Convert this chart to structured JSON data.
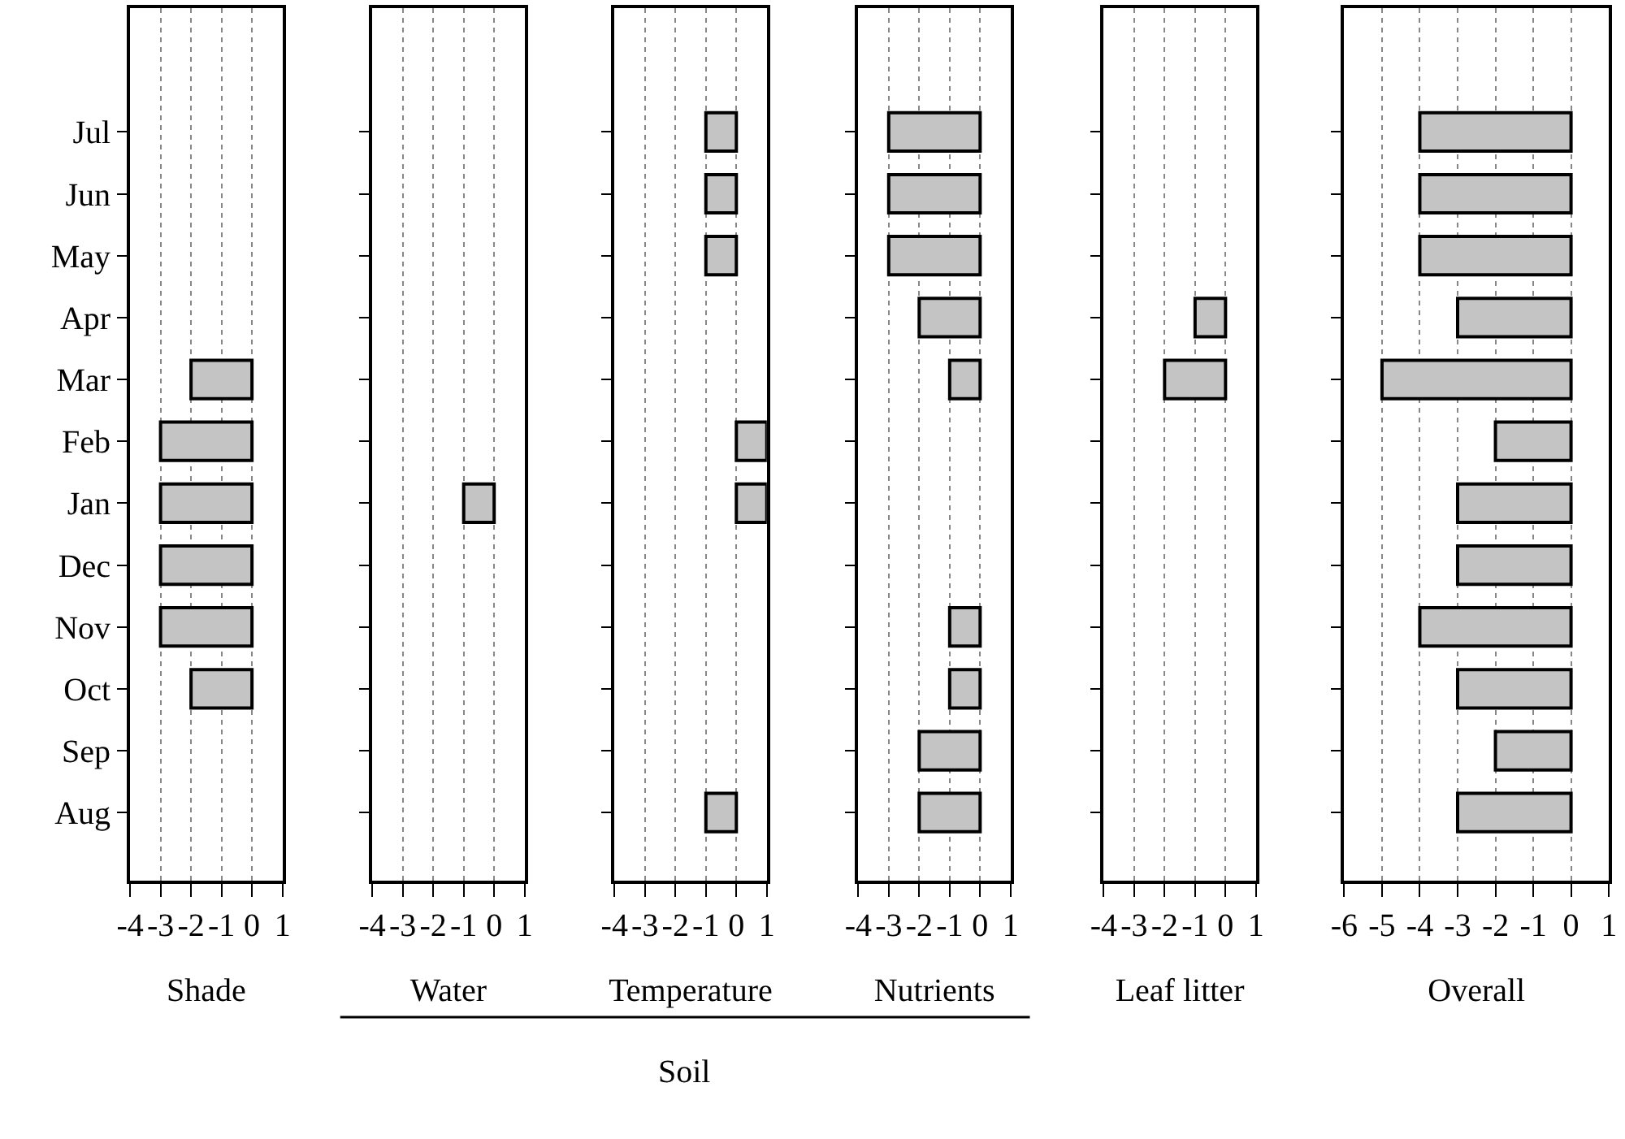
{
  "chart_data": [
    {
      "type": "bar",
      "orientation": "horizontal",
      "xlabel": "Shade",
      "categories": [
        "Jul",
        "Jun",
        "May",
        "Apr",
        "Mar",
        "Feb",
        "Jan",
        "Dec",
        "Nov",
        "Oct",
        "Sep",
        "Aug"
      ],
      "values": [
        null,
        null,
        null,
        null,
        -2,
        -3,
        -3,
        -3,
        -3,
        -2,
        null,
        null
      ],
      "color": "#c4c4c4",
      "xlim": [
        -4,
        1
      ],
      "xticks": [
        -4,
        -3,
        -2,
        -1,
        0,
        1
      ],
      "grid": "x"
    },
    {
      "type": "bar",
      "orientation": "horizontal",
      "xlabel": "Water",
      "categories": [
        "Jul",
        "Jun",
        "May",
        "Apr",
        "Mar",
        "Feb",
        "Jan",
        "Dec",
        "Nov",
        "Oct",
        "Sep",
        "Aug"
      ],
      "values": [
        null,
        null,
        null,
        null,
        null,
        null,
        -1,
        null,
        null,
        null,
        null,
        null
      ],
      "color": "#c4c4c4",
      "xlim": [
        -4,
        1
      ],
      "xticks": [
        -4,
        -3,
        -2,
        -1,
        0,
        1
      ],
      "grid": "x",
      "tick_labels": "x"
    },
    {
      "type": "bar",
      "orientation": "horizontal",
      "xlabel": "Temperature",
      "categories": [
        "Jul",
        "Jun",
        "May",
        "Apr",
        "Mar",
        "Feb",
        "Jan",
        "Dec",
        "Nov",
        "Oct",
        "Sep",
        "Aug"
      ],
      "values": [
        -1,
        -1,
        -1,
        null,
        null,
        1,
        1,
        null,
        null,
        null,
        null,
        -1
      ],
      "color": "#c4c4c4",
      "xlim": [
        -4,
        1
      ],
      "xticks": [
        -4,
        -3,
        -2,
        -1,
        0,
        1
      ],
      "grid": "x",
      "tick_labels": "x",
      "annotations": [
        "Soil"
      ]
    },
    {
      "type": "bar",
      "orientation": "horizontal",
      "xlabel": "Nutrients",
      "categories": [
        "Jul",
        "Jun",
        "May",
        "Apr",
        "Mar",
        "Feb",
        "Jan",
        "Dec",
        "Nov",
        "Oct",
        "Sep",
        "Aug"
      ],
      "values": [
        -3,
        -3,
        -3,
        -2,
        -1,
        null,
        null,
        null,
        -1,
        -1,
        -2,
        -2
      ],
      "color": "#c4c4c4",
      "xlim": [
        -4,
        1
      ],
      "xticks": [
        -4,
        -3,
        -2,
        -1,
        0,
        1
      ],
      "grid": "x",
      "tick_labels": "x"
    },
    {
      "type": "bar",
      "orientation": "horizontal",
      "xlabel": "Leaf litter",
      "categories": [
        "Jul",
        "Jun",
        "May",
        "Apr",
        "Mar",
        "Feb",
        "Jan",
        "Dec",
        "Nov",
        "Oct",
        "Sep",
        "Aug"
      ],
      "values": [
        null,
        null,
        null,
        -1,
        -2,
        null,
        null,
        null,
        null,
        null,
        null,
        null
      ],
      "color": "#c4c4c4",
      "xlim": [
        -4,
        1
      ],
      "xticks": [
        -4,
        -3,
        -2,
        -1,
        0,
        1
      ],
      "grid": "x",
      "tick_labels": "x"
    },
    {
      "type": "bar",
      "orientation": "horizontal",
      "xlabel": "Overall",
      "categories": [
        "Jul",
        "Jun",
        "May",
        "Apr",
        "Mar",
        "Feb",
        "Jan",
        "Dec",
        "Nov",
        "Oct",
        "Sep",
        "Aug"
      ],
      "values": [
        -4,
        -4,
        -4,
        -3,
        -5,
        -2,
        -3,
        -3,
        -4,
        -3,
        -2,
        -3
      ],
      "color": "#c4c4c4",
      "xlim": [
        -6,
        1
      ],
      "xticks": [
        -6,
        -5,
        -4,
        -3,
        -2,
        -1,
        0,
        1
      ],
      "grid": "x",
      "tick_labels": "x"
    }
  ]
}
